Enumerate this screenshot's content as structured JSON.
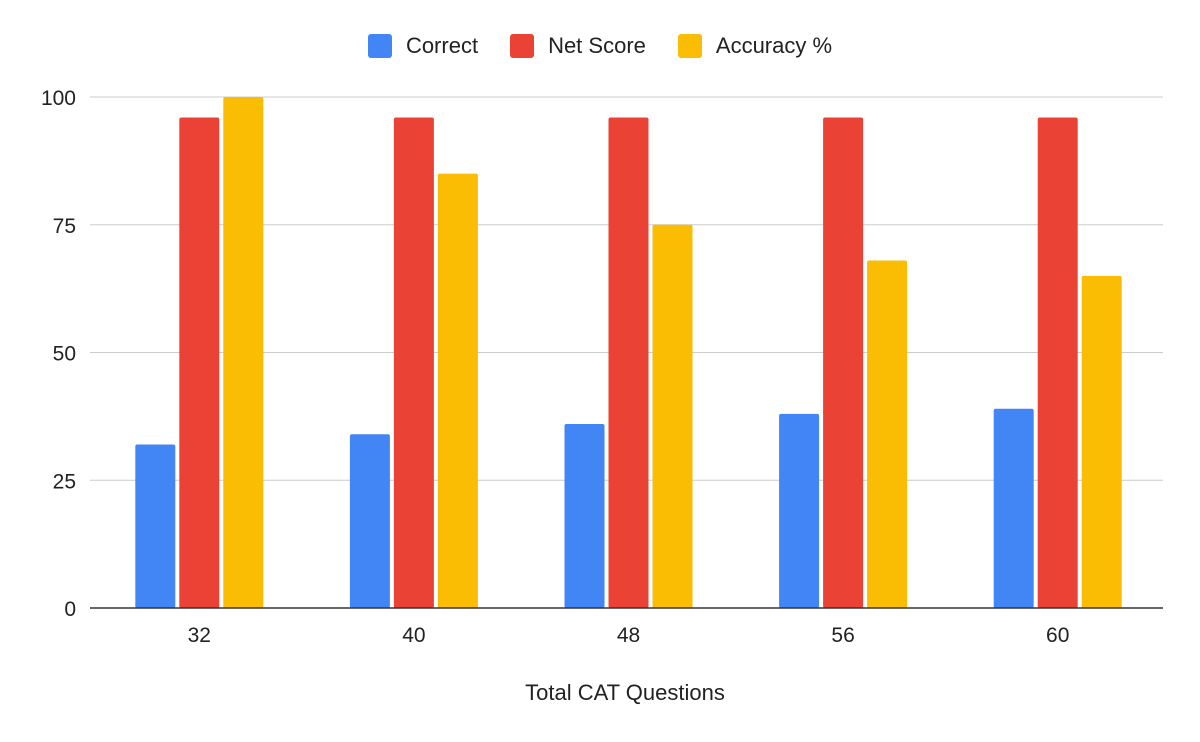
{
  "chart_data": {
    "type": "bar",
    "title": "",
    "xlabel": "Total CAT Questions",
    "ylabel": "",
    "categories": [
      "32",
      "40",
      "48",
      "56",
      "60"
    ],
    "series": [
      {
        "name": "Correct",
        "color": "#4285F4",
        "values": [
          32,
          34,
          36,
          38,
          39
        ]
      },
      {
        "name": "Net Score",
        "color": "#EA4335",
        "values": [
          96,
          96,
          96,
          96,
          96
        ]
      },
      {
        "name": "Accuracy %",
        "color": "#FBBC04",
        "values": [
          100,
          85,
          75,
          68,
          65
        ]
      }
    ],
    "ylim": [
      0,
      100
    ],
    "yticks": [
      "0",
      "25",
      "50",
      "75",
      "100"
    ],
    "grid": true,
    "legend": "top"
  }
}
